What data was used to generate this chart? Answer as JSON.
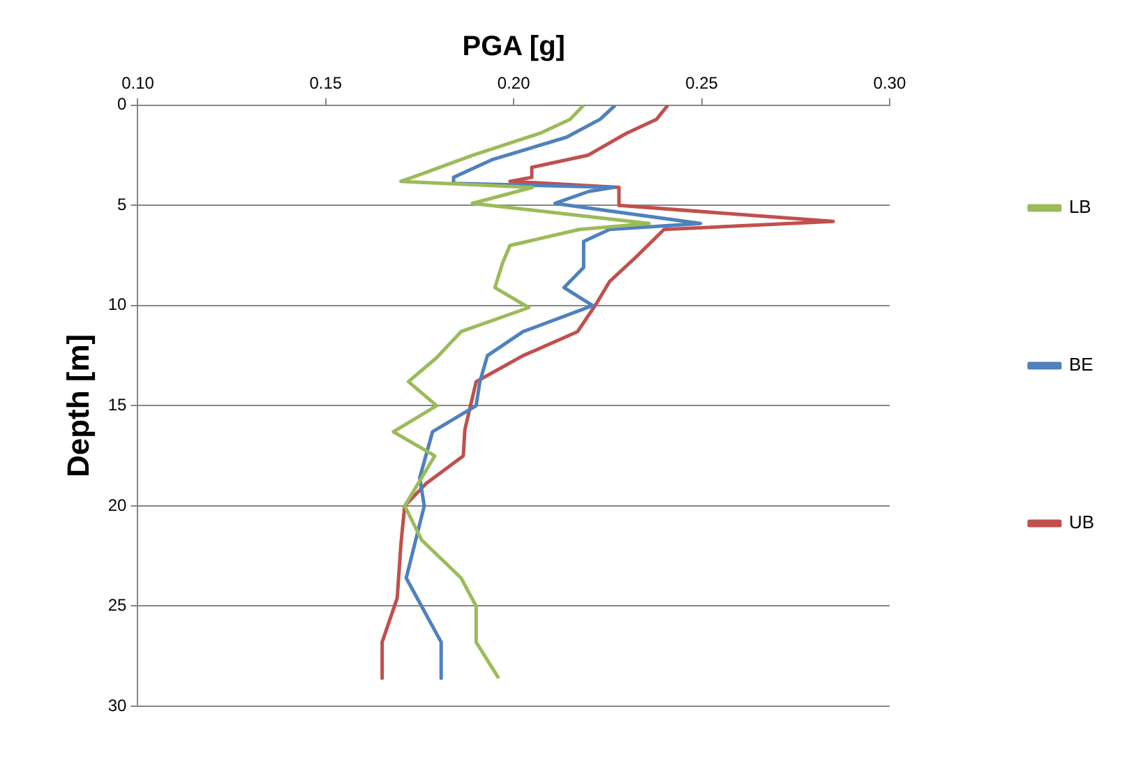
{
  "chart_data": {
    "type": "line",
    "orientation": "horizontal",
    "xlabel": "PGA [g]",
    "ylabel": "Depth [m]",
    "xlim": [
      0.1,
      0.3
    ],
    "xticks": [
      {
        "value": 0.1,
        "label": "0.10"
      },
      {
        "value": 0.15,
        "label": "0.15"
      },
      {
        "value": 0.2,
        "label": "0.20"
      },
      {
        "value": 0.25,
        "label": "0.25"
      },
      {
        "value": 0.3,
        "label": "0.30"
      }
    ],
    "ylim": [
      30,
      0
    ],
    "yticks": [
      0,
      5,
      10,
      15,
      20,
      25,
      30
    ],
    "grid": "y",
    "legend": "right",
    "marker": "none",
    "series": [
      {
        "name": "LB",
        "color": "#9bbb59",
        "values": [
          0.2186,
          0.215,
          0.207,
          0.189,
          0.176,
          0.17,
          0.205,
          0.189,
          0.236,
          0.2175,
          0.199,
          0.197,
          0.195,
          0.204,
          0.186,
          0.1795,
          0.172,
          0.1795,
          0.168,
          0.179,
          0.171,
          0.1755,
          0.186,
          0.19,
          0.19,
          0.196
        ],
        "x": [
          0,
          0.7,
          1.4,
          2.5,
          3.4,
          3.8,
          4.1,
          4.9,
          5.9,
          6.2,
          7,
          7.9,
          9.1,
          10.1,
          11.3,
          12.6,
          13.8,
          15,
          16.3,
          17.5,
          20,
          21.7,
          23.6,
          25,
          26.8,
          28.6
        ]
      },
      {
        "name": "BE",
        "color": "#4f81bd",
        "values": [
          0.227,
          0.223,
          0.214,
          0.1945,
          0.184,
          0.184,
          0.2266,
          0.22,
          0.211,
          0.2497,
          0.2255,
          0.2186,
          0.2186,
          0.2134,
          0.221,
          0.2025,
          0.193,
          0.191,
          0.19,
          0.1784,
          0.175,
          0.1762,
          0.1714,
          0.1807,
          0.1807
        ],
        "x": [
          0,
          0.7,
          1.6,
          2.7,
          3.6,
          3.9,
          4.1,
          4.3,
          4.9,
          5.9,
          6.2,
          6.8,
          8.1,
          9.1,
          10,
          11.3,
          12.5,
          13.8,
          15,
          16.3,
          18.6,
          20,
          23.6,
          26.8,
          28.6
        ]
      },
      {
        "name": "UB",
        "color": "#c0504d",
        "values": [
          0.241,
          0.238,
          0.23,
          0.2197,
          0.2048,
          0.2048,
          0.199,
          0.228,
          0.228,
          0.285,
          0.24,
          0.2324,
          0.2255,
          0.222,
          0.217,
          0.2025,
          0.19,
          0.187,
          0.1866,
          0.1766,
          0.171,
          0.17,
          0.169,
          0.165,
          0.165
        ],
        "x": [
          0,
          0.7,
          1.4,
          2.5,
          3.1,
          3.6,
          3.8,
          4.1,
          5,
          5.8,
          6.2,
          7.6,
          8.8,
          9.9,
          11.3,
          12.5,
          13.8,
          16.2,
          17.5,
          18.9,
          20,
          21.9,
          24.6,
          26.8,
          28.6
        ]
      }
    ]
  }
}
